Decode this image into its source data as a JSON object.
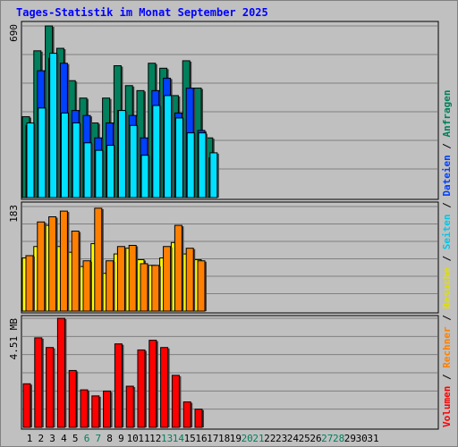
{
  "chart_data": {
    "type": "bar",
    "title": "Tages-Statistik im Monat September 2025",
    "categories": [
      "1",
      "2",
      "3",
      "4",
      "5",
      "6",
      "7",
      "8",
      "9",
      "10",
      "11",
      "12",
      "13",
      "14",
      "15",
      "16",
      "17",
      "18",
      "19",
      "20",
      "21",
      "22",
      "23",
      "24",
      "25",
      "26",
      "27",
      "28",
      "29",
      "30",
      "31"
    ],
    "weekend_days": [
      "6",
      "7",
      "13",
      "14",
      "20",
      "21",
      "27",
      "28"
    ],
    "panels": [
      {
        "id": "requests",
        "max_label": "690",
        "ymax": 690,
        "series": [
          {
            "name": "Anfragen",
            "color": "#00805c",
            "values": [
              325,
              590,
              690,
              600,
              470,
              400,
              300,
              400,
              530,
              450,
              430,
              540,
              520,
              410,
              550,
              440,
              240,
              null,
              null,
              null,
              null,
              null,
              null,
              null,
              null,
              null,
              null,
              null,
              null,
              null,
              null
            ]
          },
          {
            "name": "Dateien",
            "color": "#0040ff",
            "values": [
              290,
              510,
              560,
              540,
              350,
              330,
              240,
              300,
              350,
              330,
              240,
              430,
              480,
              340,
              440,
              270,
              160,
              null,
              null,
              null,
              null,
              null,
              null,
              null,
              null,
              null,
              null,
              null,
              null,
              null,
              null
            ]
          },
          {
            "name": "Seiten",
            "color": "#00e0ff",
            "values": [
              300,
              360,
              580,
              340,
              300,
              220,
              190,
              210,
              350,
              290,
              170,
              370,
              410,
              320,
              260,
              260,
              180,
              null,
              null,
              null,
              null,
              null,
              null,
              null,
              null,
              null,
              null,
              null,
              null,
              null,
              null
            ]
          }
        ]
      },
      {
        "id": "visits",
        "max_label": "183",
        "ymax": 183,
        "series": [
          {
            "name": "Besuche",
            "color": "#ffff00",
            "values": [
              93,
              113,
              150,
              113,
              103,
              78,
              118,
              66,
              100,
              110,
              90,
              80,
              93,
              120,
              100,
              90,
              null,
              null,
              null,
              null,
              null,
              null,
              null,
              null,
              null,
              null,
              null,
              null,
              null,
              null,
              null
            ]
          },
          {
            "name": "Rechner",
            "color": "#ff8000",
            "values": [
              97,
              156,
              165,
              175,
              140,
              88,
              180,
              88,
              113,
              115,
              83,
              80,
              113,
              150,
              110,
              88,
              null,
              null,
              null,
              null,
              null,
              null,
              null,
              null,
              null,
              null,
              null,
              null,
              null,
              null,
              null
            ]
          }
        ]
      },
      {
        "id": "volume",
        "max_label": "4.51 MB",
        "ymax": 4.51,
        "series": [
          {
            "name": "Volumen",
            "color": "#ff0000",
            "values": [
              1.8,
              3.7,
              3.3,
              4.51,
              2.35,
              1.55,
              1.3,
              1.5,
              3.45,
              1.7,
              3.2,
              3.6,
              3.3,
              2.15,
              1.05,
              0.75,
              null,
              null,
              null,
              null,
              null,
              null,
              null,
              null,
              null,
              null,
              null,
              null,
              null,
              null,
              null
            ]
          }
        ]
      }
    ],
    "side_legend": [
      {
        "name": "Volumen",
        "color": "#ff0000"
      },
      {
        "name": "Rechner",
        "color": "#ff8000"
      },
      {
        "name": "Besuche",
        "color": "#e0e000"
      },
      {
        "name": "Seiten",
        "color": "#00c8e8"
      },
      {
        "name": "Dateien",
        "color": "#0040ff"
      },
      {
        "name": "Anfragen",
        "color": "#00805c"
      }
    ],
    "legend_separator": " / ",
    "grid": true,
    "colors": {
      "background": "#c0c0c0",
      "plot_background": "#c0c0c0",
      "gridline": "#808080",
      "title": "#0000ff",
      "weekday_label": "#000000",
      "weekend_label": "#00805c"
    }
  }
}
